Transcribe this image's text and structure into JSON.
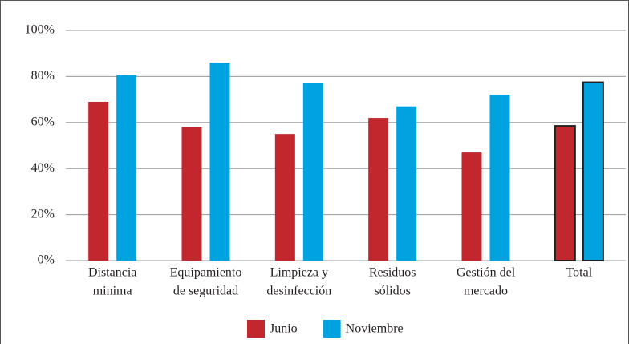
{
  "chart_data": {
    "type": "bar",
    "categories": [
      [
        "Distancia",
        "minima"
      ],
      [
        "Equipamiento",
        "de seguridad"
      ],
      [
        "Limpieza y",
        "desinfección"
      ],
      [
        "Residuos",
        "sólidos"
      ],
      [
        "Gestión del",
        "mercado"
      ],
      [
        "Total"
      ]
    ],
    "series": [
      {
        "name": "Junio",
        "color": "#c1272d",
        "values": [
          69,
          58,
          55,
          62,
          47,
          58.5
        ]
      },
      {
        "name": "Noviembre",
        "color": "#00a3e0",
        "values": [
          80.5,
          86,
          77,
          67,
          72,
          77.5
        ]
      }
    ],
    "ylim": [
      0,
      100
    ],
    "yticks": [
      {
        "value": 0,
        "label": "0%"
      },
      {
        "value": 20,
        "label": "20%"
      },
      {
        "value": 40,
        "label": "40%"
      },
      {
        "value": 60,
        "label": "60%"
      },
      {
        "value": 80,
        "label": "80%"
      },
      {
        "value": 100,
        "label": "100%"
      }
    ],
    "grid": true,
    "legend": "bottom",
    "highlight_index": 5,
    "highlight_stroke": "#231f20"
  }
}
